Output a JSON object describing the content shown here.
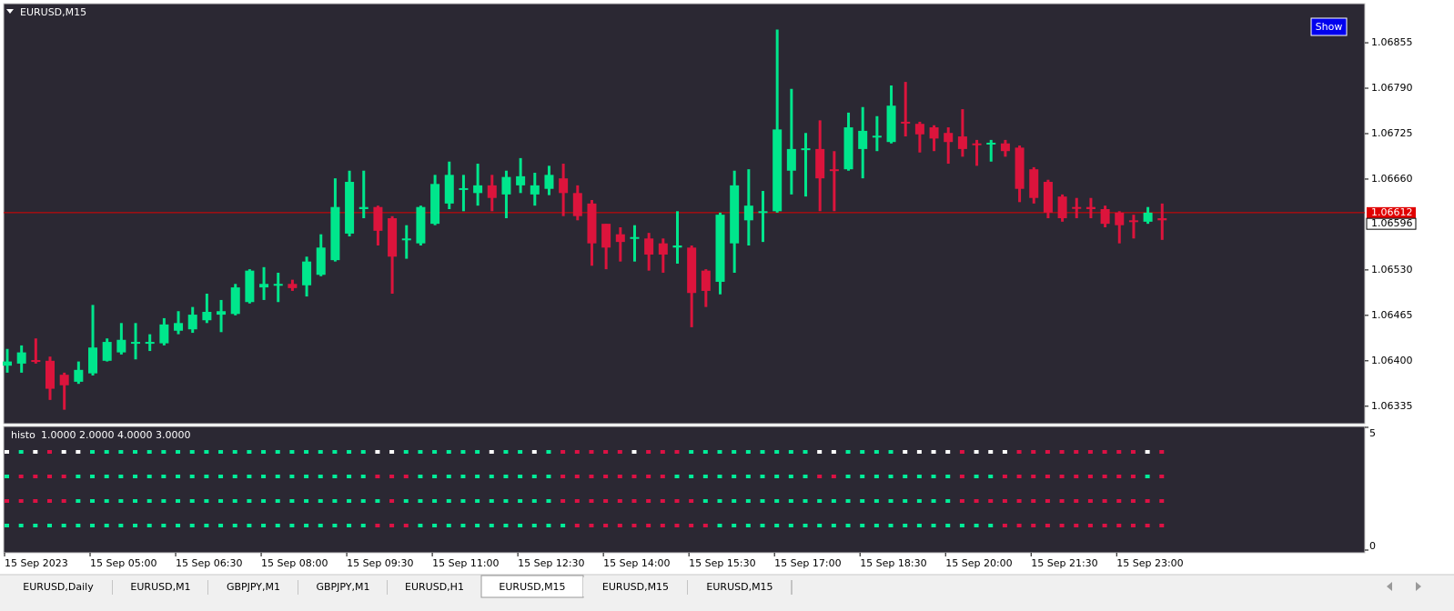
{
  "chart_data": [
    {
      "type": "candlestick",
      "title": "EURUSD,M15",
      "categories": [
        "15 Sep 2023",
        null,
        null,
        null,
        null,
        null,
        "15 Sep 05:00",
        null,
        null,
        null,
        null,
        null,
        "15 Sep 06:30",
        null,
        null,
        null,
        null,
        null,
        "15 Sep 08:00",
        null,
        null,
        null,
        null,
        null,
        "15 Sep 09:30",
        null,
        null,
        null,
        null,
        null,
        "15 Sep 11:00",
        null,
        null,
        null,
        null,
        null,
        "15 Sep 12:30",
        null,
        null,
        null,
        null,
        null,
        "15 Sep 14:00",
        null,
        null,
        null,
        null,
        null,
        "15 Sep 15:30",
        null,
        null,
        null,
        null,
        null,
        "15 Sep 17:00",
        null,
        null,
        null,
        null,
        null,
        "15 Sep 18:30",
        null,
        null,
        null,
        null,
        null,
        "15 Sep 20:00",
        null,
        null,
        null,
        null,
        null,
        "15 Sep 21:30",
        null,
        null,
        null,
        null,
        null,
        "15 Sep 23:00",
        null,
        null,
        null
      ],
      "open": [
        1.06393,
        1.06396,
        1.06401,
        1.064,
        1.0638,
        1.0637,
        1.06382,
        1.064,
        1.06412,
        1.06426,
        1.06425,
        1.06425,
        1.06443,
        1.06445,
        1.06458,
        1.06466,
        1.06467,
        1.06484,
        1.06505,
        1.06508,
        1.0651,
        1.06508,
        1.06523,
        1.06544,
        1.06582,
        1.06617,
        1.0662,
        1.06604,
        1.06573,
        1.06568,
        1.06596,
        1.06625,
        1.06646,
        1.0664,
        1.06651,
        1.06638,
        1.06651,
        1.06638,
        1.06646,
        1.06661,
        1.0664,
        1.06625,
        1.06596,
        1.06581,
        1.06575,
        1.06575,
        1.06568,
        1.06562,
        1.06562,
        1.06529,
        1.06513,
        1.06568,
        1.06601,
        1.06612,
        1.06614,
        1.06672,
        1.06703,
        1.06703,
        1.06674,
        1.06674,
        1.06703,
        1.06721,
        1.06713,
        1.06742,
        1.06739,
        1.06734,
        1.06726,
        1.06721,
        1.06711,
        1.06711,
        1.06711,
        1.06705,
        1.06674,
        1.06656,
        1.06635,
        1.0662,
        1.0662,
        1.06617,
        1.06612,
        1.06601,
        1.06599,
        1.06604
      ],
      "high": [
        1.06417,
        1.06422,
        1.06432,
        1.06406,
        1.06383,
        1.06399,
        1.0648,
        1.06432,
        1.06454,
        1.06454,
        1.06438,
        1.06461,
        1.06471,
        1.06477,
        1.06496,
        1.06487,
        1.0651,
        1.06531,
        1.06534,
        1.06526,
        1.06516,
        1.06549,
        1.06581,
        1.06661,
        1.06672,
        1.06672,
        1.06622,
        1.06607,
        1.06594,
        1.06622,
        1.06666,
        1.06685,
        1.06666,
        1.06682,
        1.06666,
        1.06672,
        1.0669,
        1.06669,
        1.06679,
        1.06682,
        1.06651,
        1.0663,
        1.06596,
        1.06591,
        1.06594,
        1.06583,
        1.06575,
        1.06614,
        1.06565,
        1.06531,
        1.06612,
        1.06672,
        1.06674,
        1.06643,
        1.06874,
        1.06789,
        1.06726,
        1.06744,
        1.067,
        1.06755,
        1.06763,
        1.0675,
        1.06794,
        1.06799,
        1.06742,
        1.06737,
        1.06734,
        1.0676,
        1.06716,
        1.06716,
        1.06716,
        1.06708,
        1.06677,
        1.06659,
        1.06638,
        1.06633,
        1.06633,
        1.06622,
        1.06614,
        1.06609,
        1.0662,
        1.06625
      ],
      "low": [
        1.06383,
        1.06383,
        1.06396,
        1.06344,
        1.0633,
        1.06367,
        1.06379,
        1.06399,
        1.06409,
        1.06402,
        1.06414,
        1.06422,
        1.06438,
        1.0644,
        1.06454,
        1.06441,
        1.06465,
        1.06482,
        1.06487,
        1.06484,
        1.065,
        1.06492,
        1.06521,
        1.06542,
        1.06578,
        1.06604,
        1.06565,
        1.06496,
        1.06546,
        1.06565,
        1.06594,
        1.06617,
        1.06614,
        1.06622,
        1.06614,
        1.06604,
        1.0664,
        1.06622,
        1.06637,
        1.06607,
        1.06601,
        1.06536,
        1.06531,
        1.06542,
        1.06542,
        1.06529,
        1.06526,
        1.06539,
        1.06448,
        1.06477,
        1.06495,
        1.06526,
        1.06565,
        1.0657,
        1.06612,
        1.06638,
        1.06635,
        1.06614,
        1.06614,
        1.06672,
        1.06661,
        1.067,
        1.06711,
        1.06721,
        1.06698,
        1.067,
        1.06682,
        1.06692,
        1.06679,
        1.06685,
        1.06692,
        1.06627,
        1.06625,
        1.06604,
        1.06599,
        1.06604,
        1.06604,
        1.06591,
        1.06568,
        1.06575,
        1.06596,
        1.06573
      ],
      "close": [
        1.06399,
        1.06412,
        1.064,
        1.0636,
        1.06365,
        1.06387,
        1.06419,
        1.06427,
        1.0643,
        1.06427,
        1.06427,
        1.06452,
        1.06454,
        1.06466,
        1.0647,
        1.06471,
        1.06505,
        1.06529,
        1.0651,
        1.0651,
        1.06504,
        1.06542,
        1.06562,
        1.0662,
        1.06656,
        1.0662,
        1.06586,
        1.06549,
        1.06575,
        1.0662,
        1.06653,
        1.06666,
        1.06647,
        1.06651,
        1.06633,
        1.06663,
        1.06664,
        1.06651,
        1.06666,
        1.0664,
        1.06607,
        1.06568,
        1.06562,
        1.0657,
        1.06577,
        1.06552,
        1.06552,
        1.06565,
        1.06497,
        1.065,
        1.06609,
        1.06651,
        1.06622,
        1.06614,
        1.06731,
        1.06703,
        1.06704,
        1.06661,
        1.06673,
        1.06734,
        1.06729,
        1.06722,
        1.06765,
        1.0674,
        1.06724,
        1.06718,
        1.06713,
        1.06703,
        1.06709,
        1.06712,
        1.067,
        1.06646,
        1.06633,
        1.06612,
        1.06604,
        1.06618,
        1.06617,
        1.06596,
        1.06594,
        1.06599,
        1.06612,
        1.06601
      ],
      "up_color": "#00e68c",
      "down_color": "#dc143c",
      "ylim": [
        1.0631,
        1.06911
      ],
      "yticks": [
        1.06855,
        {
          "value": 1.0679,
          "label": "1.06790"
        },
        1.06725,
        {
          "value": 1.0666,
          "label": "1.06660"
        },
        {
          "value": 1.0653,
          "label": "1.06530"
        },
        1.06465,
        {
          "value": 1.064,
          "label": "1.06400"
        },
        1.06335
      ],
      "ask": 1.06612,
      "ask_color": "#e00000",
      "bid": 1.06596
    },
    {
      "type": "dots",
      "title": "histo",
      "buffers": {
        "values": [
          1,
          2,
          4,
          3
        ],
        "value_labels": [
          "1.0000",
          "2.0000",
          "4.0000",
          "3.0000"
        ]
      },
      "ylim": [
        0,
        5
      ],
      "yticks": [
        5,
        0
      ],
      "series": [
        {
          "value": 4,
          "colors": [
            "#fff",
            "#0e9",
            "#fff",
            "#d14",
            "#fff",
            "#fff",
            "#0e9",
            "#0e9",
            "#0e9",
            "#0e9",
            "#0e9",
            "#0e9",
            "#0e9",
            "#0e9",
            "#0e9",
            "#0e9",
            "#0e9",
            "#0e9",
            "#0e9",
            "#0e9",
            "#0e9",
            "#0e9",
            "#0e9",
            "#0e9",
            "#0e9",
            "#0e9",
            "#fff",
            "#fff",
            "#0e9",
            "#0e9",
            "#0e9",
            "#0e9",
            "#0e9",
            "#0e9",
            "#fff",
            "#0e9",
            "#0e9",
            "#fff",
            "#0e9",
            "#d14",
            "#d14",
            "#d14",
            "#d14",
            "#d14",
            "#fff",
            "#d14",
            "#d14",
            "#d14",
            "#0e9",
            "#0e9",
            "#0e9",
            "#0e9",
            "#0e9",
            "#0e9",
            "#0e9",
            "#0e9",
            "#0e9",
            "#fff",
            "#fff",
            "#0e9",
            "#0e9",
            "#0e9",
            "#0e9",
            "#fff",
            "#fff",
            "#fff",
            "#fff",
            "#d14",
            "#fff",
            "#fff",
            "#fff",
            "#d14",
            "#d14",
            "#d14",
            "#d14",
            "#d14",
            "#d14",
            "#d14",
            "#d14",
            "#d14",
            "#fff",
            "#d14"
          ]
        },
        {
          "value": 3,
          "colors": [
            "#0e9",
            "#d14",
            "#d14",
            "#d14",
            "#d14",
            "#0e9",
            "#0e9",
            "#0e9",
            "#0e9",
            "#0e9",
            "#0e9",
            "#0e9",
            "#0e9",
            "#0e9",
            "#0e9",
            "#0e9",
            "#0e9",
            "#0e9",
            "#0e9",
            "#0e9",
            "#0e9",
            "#0e9",
            "#0e9",
            "#0e9",
            "#0e9",
            "#0e9",
            "#d14",
            "#d14",
            "#d14",
            "#0e9",
            "#0e9",
            "#0e9",
            "#0e9",
            "#0e9",
            "#0e9",
            "#0e9",
            "#0e9",
            "#0e9",
            "#0e9",
            "#d14",
            "#d14",
            "#d14",
            "#d14",
            "#d14",
            "#d14",
            "#d14",
            "#d14",
            "#0e9",
            "#0e9",
            "#0e9",
            "#0e9",
            "#0e9",
            "#0e9",
            "#0e9",
            "#0e9",
            "#0e9",
            "#0e9",
            "#d14",
            "#d14",
            "#0e9",
            "#0e9",
            "#0e9",
            "#0e9",
            "#0e9",
            "#0e9",
            "#0e9",
            "#0e9",
            "#d14",
            "#0e9",
            "#0e9",
            "#d14",
            "#d14",
            "#d14",
            "#d14",
            "#d14",
            "#d14",
            "#d14",
            "#d14",
            "#d14",
            "#d14",
            "#0e9",
            "#d14"
          ]
        },
        {
          "value": 2,
          "colors": [
            "#d14",
            "#d14",
            "#d14",
            "#d14",
            "#d14",
            "#0e9",
            "#0e9",
            "#0e9",
            "#0e9",
            "#0e9",
            "#0e9",
            "#0e9",
            "#0e9",
            "#0e9",
            "#0e9",
            "#0e9",
            "#0e9",
            "#0e9",
            "#0e9",
            "#0e9",
            "#0e9",
            "#0e9",
            "#0e9",
            "#0e9",
            "#0e9",
            "#0e9",
            "#0e9",
            "#d14",
            "#0e9",
            "#0e9",
            "#0e9",
            "#0e9",
            "#0e9",
            "#0e9",
            "#0e9",
            "#0e9",
            "#0e9",
            "#0e9",
            "#0e9",
            "#d14",
            "#d14",
            "#d14",
            "#d14",
            "#d14",
            "#d14",
            "#d14",
            "#d14",
            "#d14",
            "#d14",
            "#0e9",
            "#0e9",
            "#0e9",
            "#0e9",
            "#0e9",
            "#0e9",
            "#0e9",
            "#0e9",
            "#0e9",
            "#0e9",
            "#0e9",
            "#0e9",
            "#0e9",
            "#0e9",
            "#0e9",
            "#0e9",
            "#0e9",
            "#0e9",
            "#d14",
            "#d14",
            "#d14",
            "#d14",
            "#d14",
            "#d14",
            "#d14",
            "#d14",
            "#d14",
            "#d14",
            "#d14",
            "#d14",
            "#d14",
            "#d14",
            "#d14"
          ]
        },
        {
          "value": 1,
          "colors": [
            "#0e9",
            "#0e9",
            "#0e9",
            "#0e9",
            "#0e9",
            "#0e9",
            "#0e9",
            "#0e9",
            "#0e9",
            "#0e9",
            "#0e9",
            "#0e9",
            "#0e9",
            "#0e9",
            "#0e9",
            "#0e9",
            "#0e9",
            "#0e9",
            "#0e9",
            "#0e9",
            "#0e9",
            "#0e9",
            "#0e9",
            "#0e9",
            "#0e9",
            "#0e9",
            "#d14",
            "#d14",
            "#d14",
            "#0e9",
            "#0e9",
            "#0e9",
            "#0e9",
            "#0e9",
            "#0e9",
            "#0e9",
            "#0e9",
            "#0e9",
            "#0e9",
            "#0e9",
            "#d14",
            "#d14",
            "#d14",
            "#d14",
            "#d14",
            "#d14",
            "#d14",
            "#d14",
            "#d14",
            "#d14",
            "#0e9",
            "#0e9",
            "#0e9",
            "#0e9",
            "#0e9",
            "#0e9",
            "#0e9",
            "#0e9",
            "#0e9",
            "#0e9",
            "#0e9",
            "#0e9",
            "#0e9",
            "#0e9",
            "#0e9",
            "#0e9",
            "#0e9",
            "#0e9",
            "#0e9",
            "#0e9",
            "#d14",
            "#d14",
            "#d14",
            "#d14",
            "#d14",
            "#d14",
            "#d14",
            "#d14",
            "#d14",
            "#d14",
            "#d14",
            "#d14"
          ]
        }
      ]
    }
  ],
  "show_button": "Show",
  "tabs": [
    "EURUSD,Daily",
    "EURUSD,M1",
    "GBPJPY,M1",
    "GBPJPY,M1",
    "EURUSD,H1",
    "EURUSD,M15",
    "EURUSD,M15",
    "EURUSD,M15"
  ],
  "active_tab": 5
}
